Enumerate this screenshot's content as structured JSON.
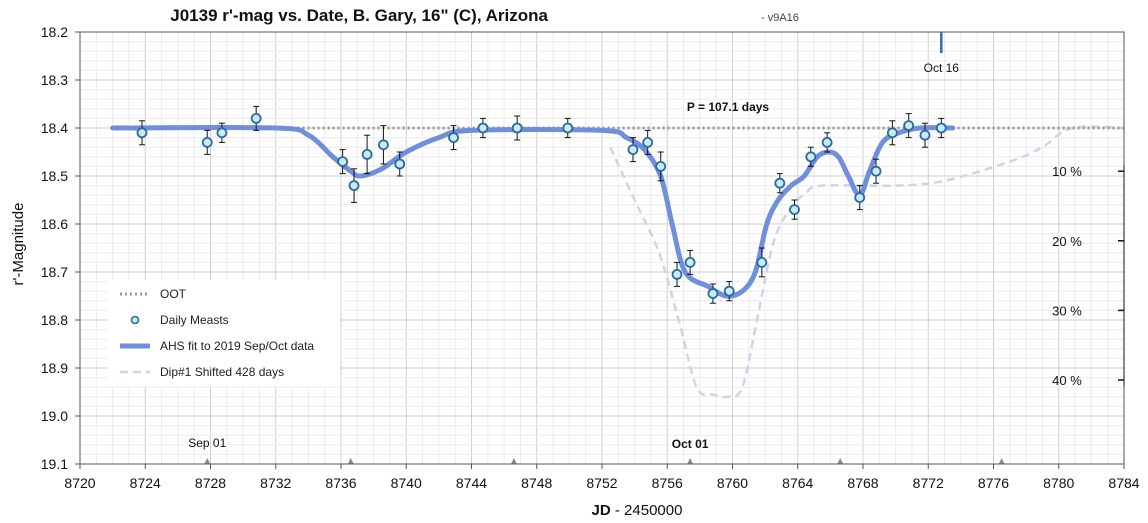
{
  "chart_data": {
    "type": "line",
    "title": "J0139 r'-mag vs. Date, B. Gary, 16\" (C), Arizona",
    "subtitle": "- v9A16",
    "xlabel_bold": "JD",
    "xlabel_rest": " - 2450000",
    "ylabel": "r'-Magnitude",
    "xlim": [
      8720,
      8784
    ],
    "ylim": [
      18.2,
      19.1
    ],
    "y_inverted": true,
    "grid": true,
    "x_ticks": [
      8720,
      8724,
      8728,
      8732,
      8736,
      8740,
      8744,
      8748,
      8752,
      8756,
      8760,
      8764,
      8768,
      8772,
      8776,
      8780,
      8784
    ],
    "x_tick_labels": [
      "8720",
      "8724",
      "8728",
      "8732",
      "8736",
      "8740",
      "8744",
      "8748",
      "8752",
      "8756",
      "8760",
      "8764",
      "8768",
      "8772",
      "8776",
      "8780",
      "8784"
    ],
    "y_ticks": [
      18.2,
      18.3,
      18.4,
      18.5,
      18.6,
      18.7,
      18.8,
      18.9,
      19.0,
      19.1
    ],
    "y_tick_labels": [
      "18.2",
      "18.3",
      "18.4",
      "18.5",
      "18.6",
      "18.7",
      "18.8",
      "18.9",
      "19.0",
      "19.1"
    ],
    "legend_position": "bottom-left",
    "series": [
      {
        "name": "OOT",
        "color": "#9a9a9a",
        "x": [
          8722,
          8784
        ],
        "y": [
          18.4,
          18.4
        ]
      },
      {
        "name": "Daily Measts",
        "color": "#2b6aa0",
        "fill": "#c8ecf0",
        "x": [
          8723.8,
          8727.8,
          8728.7,
          8730.8,
          8736.1,
          8736.8,
          8737.6,
          8738.6,
          8739.6,
          8742.9,
          8744.7,
          8746.8,
          8749.9,
          8753.9,
          8754.8,
          8755.6,
          8756.6,
          8757.4,
          8758.8,
          8759.8,
          8761.8,
          8762.9,
          8763.8,
          8764.8,
          8765.8,
          8767.8,
          8768.8,
          8769.8,
          8770.8,
          8771.8,
          8772.8
        ],
        "y": [
          18.41,
          18.43,
          18.41,
          18.38,
          18.47,
          18.52,
          18.455,
          18.435,
          18.475,
          18.42,
          18.4,
          18.4,
          18.4,
          18.445,
          18.43,
          18.48,
          18.705,
          18.68,
          18.745,
          18.74,
          18.68,
          18.515,
          18.57,
          18.46,
          18.43,
          18.545,
          18.49,
          18.41,
          18.395,
          18.415,
          18.4
        ],
        "err": [
          0.025,
          0.025,
          0.02,
          0.025,
          0.025,
          0.035,
          0.04,
          0.04,
          0.025,
          0.025,
          0.02,
          0.025,
          0.02,
          0.025,
          0.025,
          0.03,
          0.025,
          0.025,
          0.02,
          0.02,
          0.03,
          0.02,
          0.02,
          0.02,
          0.02,
          0.025,
          0.025,
          0.025,
          0.025,
          0.025,
          0.02
        ]
      },
      {
        "name": "AHS fit to 2019 Sep/Oct data",
        "color": "#6f8fdc",
        "x": [
          8722,
          8732,
          8734,
          8735.5,
          8736.6,
          8737.2,
          8738.5,
          8740,
          8742,
          8744,
          8752,
          8753.5,
          8754.6,
          8755.6,
          8756.3,
          8757.1,
          8758.5,
          8759.6,
          8760.6,
          8761.4,
          8762.1,
          8762.8,
          8763.6,
          8764.4,
          8765.2,
          8765.9,
          8766.5,
          8767.1,
          8767.8,
          8768.4,
          8769.2,
          8770.2,
          8771.5,
          8773.5
        ],
        "y": [
          18.4,
          18.4,
          18.415,
          18.46,
          18.49,
          18.5,
          18.485,
          18.45,
          18.42,
          18.405,
          18.405,
          18.42,
          18.445,
          18.5,
          18.6,
          18.7,
          18.73,
          18.75,
          18.74,
          18.7,
          18.6,
          18.55,
          18.52,
          18.5,
          18.46,
          18.45,
          18.46,
          18.5,
          18.54,
          18.49,
          18.43,
          18.41,
          18.4,
          18.4
        ]
      },
      {
        "name": "Dip#1 Shifted 428 days",
        "color": "#c9d6ea",
        "x": [
          8752.5,
          8754,
          8755.5,
          8756.7,
          8757.8,
          8758.8,
          8759.7,
          8760.6,
          8761.5,
          8762.5,
          8763.5,
          8764.5,
          8765.5,
          8770,
          8773,
          8777,
          8779,
          8780.8,
          8784
        ],
        "y": [
          18.44,
          18.55,
          18.66,
          18.8,
          18.94,
          18.955,
          18.96,
          18.94,
          18.8,
          18.64,
          18.57,
          18.535,
          18.52,
          18.52,
          18.51,
          18.47,
          18.44,
          18.4,
          18.4
        ]
      }
    ],
    "annotations": {
      "period": "P = 107.1 days",
      "oct16": "Oct 16",
      "sep01": "Sep 01",
      "oct01": "Oct 01",
      "oct16_x": 8772.8,
      "sep01_x": 8727.8,
      "oct01_x": 8757.4,
      "date_markers_x": [
        8727.8,
        8736.6,
        8746.6,
        8757.4,
        8766.6,
        8776.5
      ]
    },
    "depth_scale": {
      "labels": [
        "10 %",
        "20 %",
        "30 %",
        "40 %"
      ],
      "tick_mags": [
        18.49,
        18.635,
        18.78,
        18.925
      ]
    }
  }
}
